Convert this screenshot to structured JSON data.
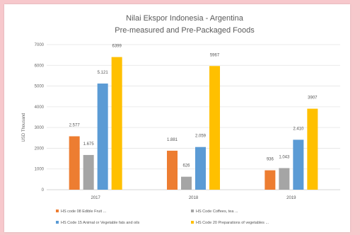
{
  "chart_data": {
    "type": "bar",
    "title": "Nilai Ekspor Indonesia - Argentina",
    "subtitle": "Pre-measured and Pre-Packaged Foods",
    "ylabel": "USD Thousand",
    "xlabel": "",
    "ylim": [
      0,
      7000
    ],
    "yticks": [
      0,
      1000,
      2000,
      3000,
      4000,
      5000,
      6000,
      7000
    ],
    "ytick_labels": [
      "0",
      "1000",
      "2000",
      "3000",
      "4000",
      "5000",
      "6000",
      "7000"
    ],
    "grid": true,
    "legend_position": "bottom",
    "categories": [
      "2017",
      "2018",
      "2019"
    ],
    "series": [
      {
        "name": "HS code 08 Edible Fruit ...",
        "color": "#ed7d31",
        "values": [
          2577,
          1881,
          936
        ],
        "labels": [
          "2.577",
          "1.881",
          "936"
        ]
      },
      {
        "name": "HS Code Coffees, tea ...",
        "color": "#a5a5a5",
        "values": [
          1675,
          626,
          1043
        ],
        "labels": [
          "1.675",
          "626",
          "1.043"
        ]
      },
      {
        "name": "HS Code 15 Animal or Vegetable fats and oils",
        "color": "#5b9bd5",
        "values": [
          5121,
          2059,
          2410
        ],
        "labels": [
          "5.121",
          "2.059",
          "2.410"
        ]
      },
      {
        "name": "HS Code 20 Preparations of vegetables ...",
        "color": "#ffc000",
        "values": [
          6399,
          5967,
          3907
        ],
        "labels": [
          "6399",
          "5967",
          "3907"
        ]
      }
    ]
  },
  "colors": {
    "background": "#f7c8cc",
    "plot_background": "#ffffff",
    "gridline": "#e4e4e4"
  }
}
